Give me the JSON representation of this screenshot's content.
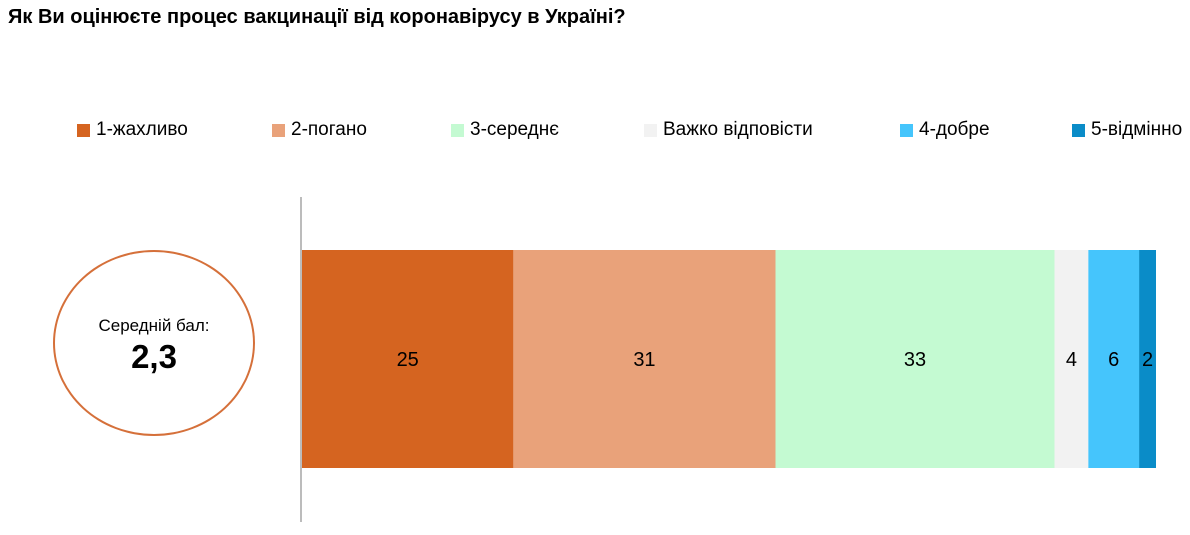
{
  "title": "Як Ви оцінюєте процес вакцинації від коронавірусу в Україні?",
  "average": {
    "label": "Середній бал:",
    "value": "2,3"
  },
  "chart_data": {
    "type": "bar",
    "orientation": "horizontal",
    "stacked": true,
    "categories": [
      ""
    ],
    "series": [
      {
        "name": "1-жахливо",
        "values": [
          25
        ],
        "color": "#d56420"
      },
      {
        "name": "2-погано",
        "values": [
          31
        ],
        "color": "#e9a27a"
      },
      {
        "name": "3-середнє",
        "values": [
          33
        ],
        "color": "#c4fad2"
      },
      {
        "name": "Важко відповісти",
        "values": [
          4
        ],
        "color": "#f2f2f2"
      },
      {
        "name": "4-добре",
        "values": [
          6
        ],
        "color": "#45c5fc"
      },
      {
        "name": "5-відмінно",
        "values": [
          2
        ],
        "color": "#0a8cc8"
      }
    ],
    "data_labels": [
      "25",
      "31",
      "33",
      "4",
      "6",
      "2"
    ],
    "xlim": [
      0,
      101
    ],
    "axis_color": "#a6a6a6",
    "legend_position": "top",
    "grid": false,
    "title": "",
    "xlabel": "",
    "ylabel": ""
  }
}
